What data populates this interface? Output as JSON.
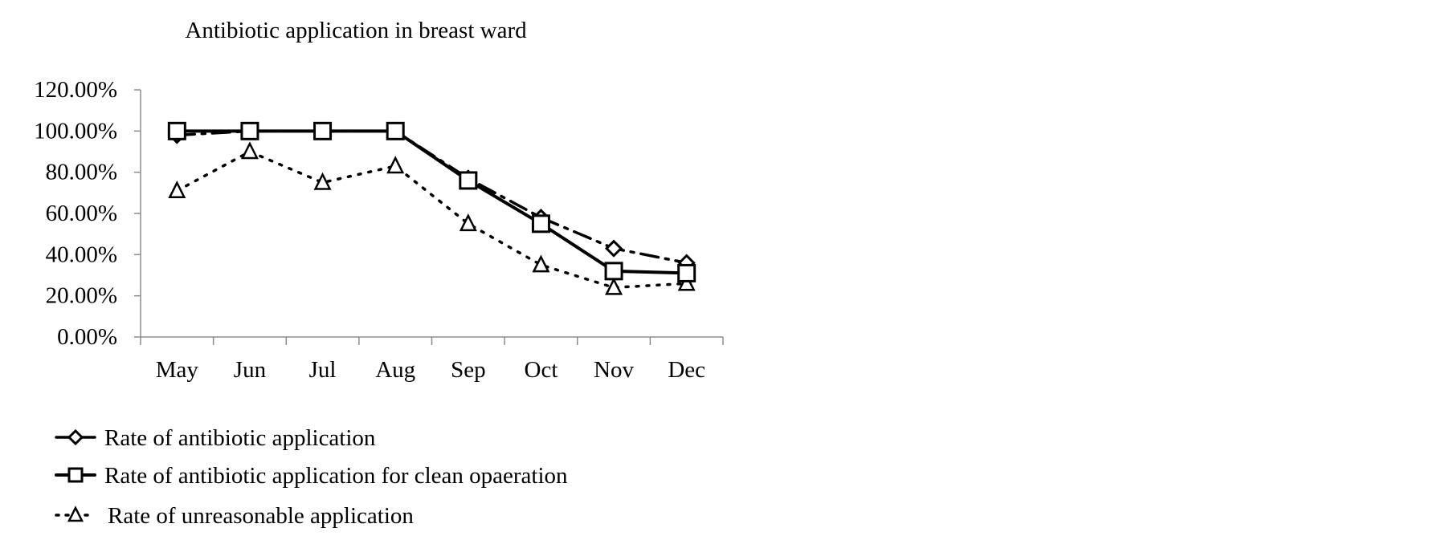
{
  "chart_data": {
    "type": "line",
    "title": "Antibiotic application in breast ward",
    "xlabel": "",
    "ylabel": "",
    "categories": [
      "May",
      "Jun",
      "Jul",
      "Aug",
      "Sep",
      "Oct",
      "Nov",
      "Dec"
    ],
    "ylim": [
      0,
      120
    ],
    "y_ticks": [
      "0.00%",
      "20.00%",
      "40.00%",
      "60.00%",
      "80.00%",
      "100.00%",
      "120.00%"
    ],
    "y_tick_values": [
      0,
      20,
      40,
      60,
      80,
      100,
      120
    ],
    "grid": false,
    "legend_position": "bottom-left",
    "series": [
      {
        "name": "Rate of antibiotic application",
        "marker": "diamond",
        "line_style": "dash-dot",
        "values": [
          98,
          100,
          100,
          100,
          77,
          58,
          43,
          36
        ]
      },
      {
        "name": "Rate of antibiotic application for clean opaeration",
        "marker": "square",
        "line_style": "solid",
        "values": [
          100,
          100,
          100,
          100,
          76,
          55,
          32,
          31
        ]
      },
      {
        "name": "Rate of unreasonable application",
        "marker": "triangle",
        "line_style": "dotted",
        "values": [
          71,
          90,
          75,
          83,
          55,
          35,
          24,
          26
        ]
      }
    ],
    "colors": {
      "line": "#000000",
      "axis": "#8c8c8c"
    }
  }
}
